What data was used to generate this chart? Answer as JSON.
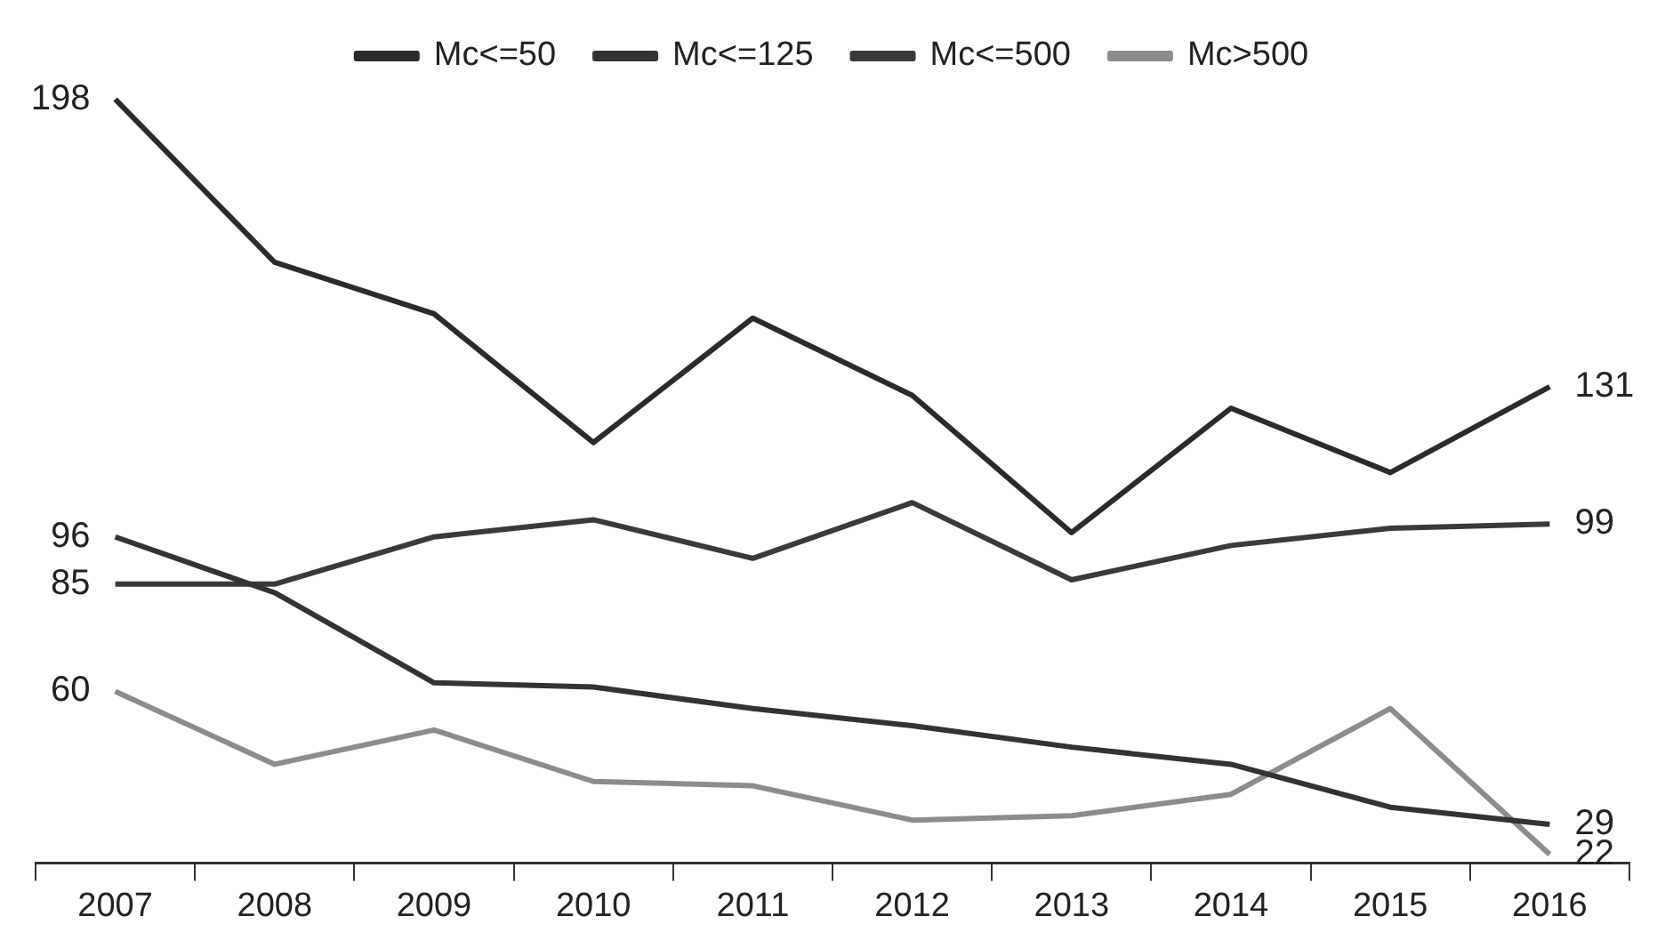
{
  "chart_data": {
    "type": "line",
    "categories": [
      "2007",
      "2008",
      "2009",
      "2010",
      "2011",
      "2012",
      "2013",
      "2014",
      "2015",
      "2016"
    ],
    "tick_labels": "x",
    "legend": "top",
    "marker": "none",
    "line_style": "solid",
    "grid": false,
    "series": [
      {
        "name": "Mc<=50",
        "color": "#2b2b2b",
        "values": [
          198,
          160,
          148,
          118,
          147,
          129,
          97,
          126,
          111,
          131
        ],
        "value_labels": [
          "198",
          null,
          null,
          null,
          null,
          null,
          null,
          null,
          null,
          "131"
        ]
      },
      {
        "name": "Mc<=125",
        "color": "#333333",
        "values": [
          96,
          83,
          62,
          61,
          56,
          52,
          47,
          43,
          33,
          29
        ],
        "value_labels": [
          "96",
          null,
          null,
          null,
          null,
          null,
          null,
          null,
          null,
          "29"
        ]
      },
      {
        "name": "Mc<=500",
        "color": "#3a3a3a",
        "values": [
          85,
          85,
          96,
          100,
          91,
          104,
          86,
          94,
          98,
          99
        ],
        "value_labels": [
          "85",
          null,
          null,
          null,
          null,
          null,
          null,
          null,
          null,
          "99"
        ]
      },
      {
        "name": "Mc>500",
        "color": "#8c8c8c",
        "values": [
          60,
          43,
          51,
          39,
          38,
          30,
          31,
          36,
          56,
          22
        ],
        "value_labels": [
          "60",
          null,
          null,
          null,
          null,
          null,
          null,
          null,
          null,
          "22"
        ]
      }
    ]
  }
}
